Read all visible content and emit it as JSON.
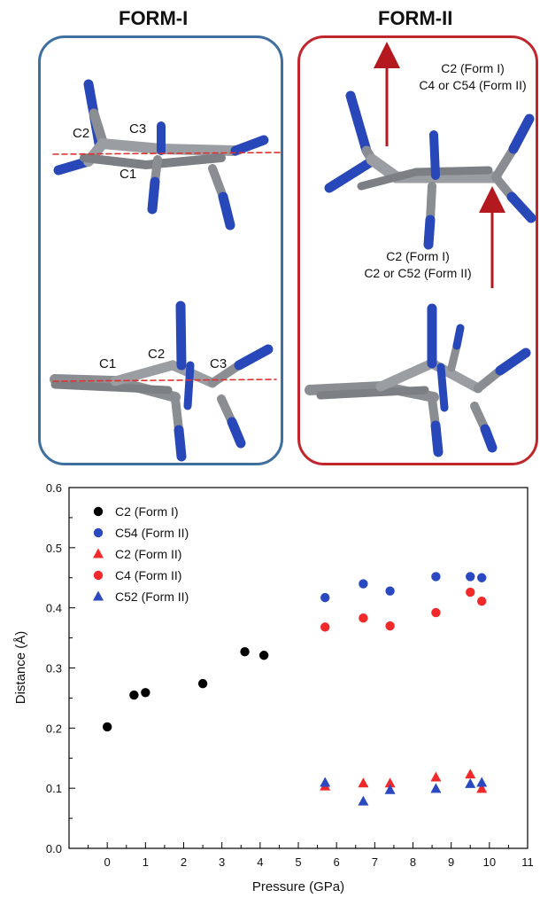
{
  "panels": {
    "form1": {
      "title": "FORM-I",
      "upper_labels": [
        "C2",
        "C3",
        "C1"
      ],
      "lower_labels": [
        "C1",
        "C2",
        "C3"
      ]
    },
    "form2": {
      "title": "FORM-II",
      "upper_arrow_label_1": "C2 (Form I)",
      "upper_arrow_label_2": "C4 or C54 (Form II)",
      "lower_arrow_label_1": "C2 (Form I)",
      "lower_arrow_label_2": "C2 or C52 (Form II)"
    }
  },
  "colors": {
    "form1_border": "#3f6f9e",
    "form2_border": "#c0272d",
    "arrow": "#b3191f",
    "bond_gray": "#8a8d91",
    "bond_blue": "#2847b8",
    "dashed_line": "#e03030"
  },
  "chart_data": {
    "type": "scatter",
    "xlabel": "Pressure (GPa)",
    "ylabel": "Distance (Å)",
    "xlim": [
      -1,
      11
    ],
    "ylim": [
      0.0,
      0.6
    ],
    "xticks": [
      "0",
      "1",
      "2",
      "3",
      "4",
      "5",
      "6",
      "7",
      "8",
      "9",
      "10",
      "11"
    ],
    "yticks": [
      "0.0",
      "0.1",
      "0.2",
      "0.3",
      "0.4",
      "0.5",
      "0.6"
    ],
    "legend_position": "top-left",
    "series": [
      {
        "name": "C2 (Form I)",
        "marker": "circle",
        "color": "#000000",
        "points": [
          [
            0.0,
            0.202
          ],
          [
            0.7,
            0.255
          ],
          [
            1.0,
            0.259
          ],
          [
            2.5,
            0.274
          ],
          [
            3.6,
            0.327
          ],
          [
            4.1,
            0.321
          ]
        ]
      },
      {
        "name": "C54 (Form II)",
        "marker": "circle",
        "color": "#2a48c0",
        "points": [
          [
            5.7,
            0.417
          ],
          [
            6.7,
            0.44
          ],
          [
            7.4,
            0.428
          ],
          [
            8.6,
            0.452
          ],
          [
            9.5,
            0.452
          ],
          [
            9.8,
            0.45
          ]
        ]
      },
      {
        "name": "C2 (Form II)",
        "marker": "triangle",
        "color": "#f02a2a",
        "points": [
          [
            5.7,
            0.103
          ],
          [
            6.7,
            0.108
          ],
          [
            7.4,
            0.108
          ],
          [
            8.6,
            0.118
          ],
          [
            9.5,
            0.123
          ],
          [
            9.8,
            0.099
          ]
        ]
      },
      {
        "name": "C4 (Form II)",
        "marker": "circle",
        "color": "#f02a2a",
        "points": [
          [
            5.7,
            0.368
          ],
          [
            6.7,
            0.383
          ],
          [
            7.4,
            0.37
          ],
          [
            8.6,
            0.392
          ],
          [
            9.5,
            0.426
          ],
          [
            9.8,
            0.411
          ]
        ]
      },
      {
        "name": "C52 (Form II)",
        "marker": "triangle",
        "color": "#2a48c0",
        "points": [
          [
            5.7,
            0.109
          ],
          [
            6.7,
            0.078
          ],
          [
            7.4,
            0.097
          ],
          [
            8.6,
            0.099
          ],
          [
            9.5,
            0.107
          ],
          [
            9.8,
            0.109
          ]
        ]
      }
    ]
  }
}
